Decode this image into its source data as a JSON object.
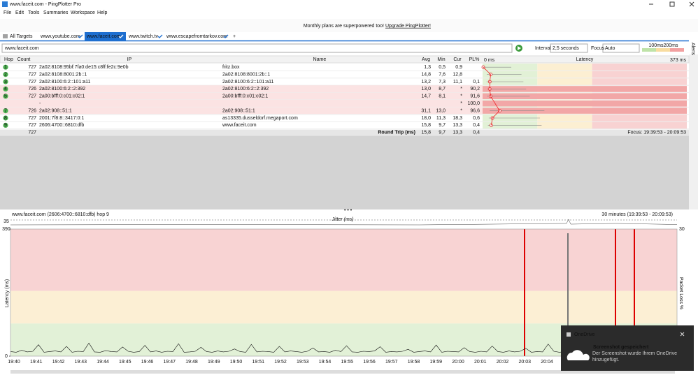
{
  "window": {
    "title": "www.faceit.com - PingPlotter Pro"
  },
  "menu": [
    "File",
    "Edit",
    "Tools",
    "Summaries",
    "Workspace",
    "Help"
  ],
  "banner": {
    "text": "Monthly plans are superpowered too!",
    "link": "Upgrade PingPlotter!"
  },
  "tabs": [
    "All Targets",
    "www.youtube.com",
    "www.faceit.com",
    "www.twitch.tv",
    "www.escapefromtarkov.com"
  ],
  "toolbar": {
    "target": "www.faceit.com",
    "interval_label": "Interval",
    "interval": "2,5 seconds",
    "focus_label": "Focus",
    "focus": "Auto",
    "threshold_labels": [
      "100ms",
      "200ms"
    ],
    "alerts": "Alerts"
  },
  "table": {
    "headers": [
      "Hop",
      "Count",
      "IP",
      "Name",
      "Avg",
      "Min",
      "Cur",
      "PL%"
    ],
    "latency_header": "Latency",
    "scale_min": "0 ms",
    "scale_max": "373 ms",
    "rows": [
      [
        "1",
        "727",
        "2a02:8108:95bf:7fa0:de15:c8ff:fe2c:9e0b",
        "fritz.box",
        "1,3",
        "0,5",
        "0,9",
        null
      ],
      [
        "2",
        "727",
        "2a02:8108:8001:2b::1",
        "2a02:8108:8001:2b::1",
        "14,8",
        "7,6",
        "12,8",
        null
      ],
      [
        "3",
        "727",
        "2a02:8100:6:2::101:a11",
        "2a02:8100:6:2::101:a11",
        "13,2",
        "7,3",
        "11,1",
        "0,1"
      ],
      [
        "4",
        "726",
        "2a02:8100:6:2::2:392",
        "2a02:8100:6:2::2:392",
        "13,0",
        "8,7",
        "*",
        "90,2"
      ],
      [
        "5",
        "727",
        "2a00:bfff:0:c01:c02:1",
        "2a00:bfff:0:c01:c02:1",
        "14,7",
        "8,1",
        "*",
        "91,6"
      ],
      [
        null,
        null,
        "-",
        null,
        null,
        null,
        "*",
        "100,0"
      ],
      [
        "7",
        "726",
        "2a02:908::51:1",
        "2a02:908::51:1",
        "31,1",
        "13,0",
        "*",
        "96,6"
      ],
      [
        "8",
        "727",
        "2001:7f8:8::3417:0:1",
        "as13335.dusseldorf.megaport.com",
        "18,0",
        "11,3",
        "18,3",
        "0,6"
      ],
      [
        "9",
        "727",
        "2606:4700::6810:dfb",
        "www.faceit.com",
        "15,8",
        "9,7",
        "13,3",
        "0,4"
      ]
    ],
    "summary": {
      "count": "727",
      "label": "Round Trip (ms)",
      "avg": "15,8",
      "min": "9,7",
      "cur": "13,3",
      "pl": "0,4",
      "focus": "Focus: 19:39:53 - 20:09:53"
    }
  },
  "graph": {
    "title": "www.faceit.com (2606:4700::6810:dfb) hop 9",
    "range": "30 minutes (19:39:53 - 20:09:53)",
    "jitter_label": "Jitter (ms)",
    "jitter_max": "35",
    "loss_max": "30",
    "y_label": "Latency (ms)",
    "y2_label": "Packet Loss %",
    "ylim": [
      0,
      390
    ],
    "yticks": [
      0,
      390
    ],
    "times": [
      "19:40",
      "19:41",
      "19:42",
      "19:43",
      "19:44",
      "19:45",
      "19:46",
      "19:47",
      "19:48",
      "19:49",
      "19:50",
      "19:51",
      "19:52",
      "19:53",
      "19:54",
      "19:55",
      "19:56",
      "19:57",
      "19:58",
      "19:59",
      "20:00",
      "20:01",
      "20:02",
      "20:03",
      "20:04"
    ],
    "latency": [
      14,
      12,
      18,
      13,
      15,
      35,
      12,
      14,
      16,
      13,
      30,
      12,
      15,
      14,
      40,
      13,
      12,
      17,
      14,
      13,
      28,
      15,
      12,
      14,
      33,
      13,
      16,
      12,
      15,
      14,
      38,
      12,
      13,
      15,
      27,
      14,
      12,
      16,
      13,
      15,
      22,
      14,
      12,
      36,
      13,
      15,
      14,
      12,
      30,
      13,
      16,
      14,
      12,
      15,
      25,
      13,
      14,
      12,
      18,
      14,
      32,
      13,
      12,
      15,
      14,
      16,
      29,
      12,
      14,
      13,
      15,
      21,
      12,
      14,
      16,
      13,
      34,
      12,
      15,
      14,
      13,
      26,
      14,
      12,
      15,
      13,
      31,
      14,
      12,
      16,
      13,
      15,
      24,
      12,
      14,
      13,
      37,
      15,
      12,
      14,
      13,
      16,
      27,
      12,
      14,
      15,
      13,
      22,
      14,
      12,
      15,
      30,
      13,
      14,
      12,
      16,
      13,
      15,
      20,
      14
    ],
    "thresholds": [
      "100ms",
      "200ms"
    ]
  },
  "toast": {
    "app": "OneDrive",
    "title": "Screenshot gespeichert",
    "body": "Der Screenshot wurde Ihrem OneDrive hinzugefügt."
  }
}
